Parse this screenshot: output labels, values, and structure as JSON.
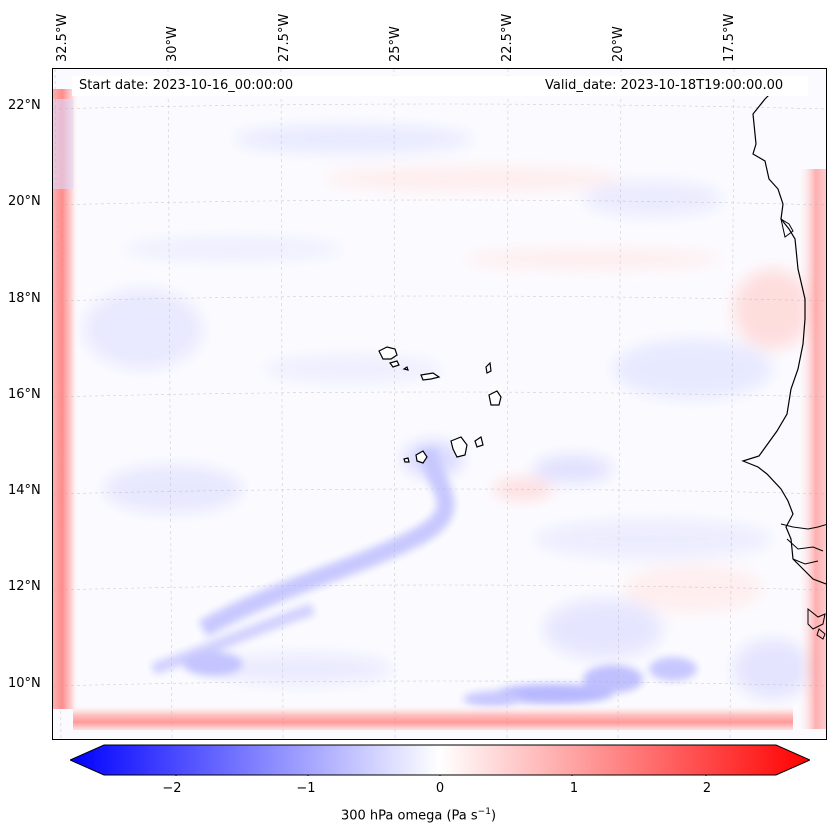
{
  "map": {
    "start_label": "Start date: 2023-10-16_00:00:00",
    "valid_label": "Valid_date: 2023-10-18T19:00:00.00",
    "lon_labels": [
      "32.5°W",
      "30°W",
      "27.5°W",
      "25°W",
      "22.5°W",
      "20°W",
      "17.5°W"
    ],
    "lat_labels": [
      "22°N",
      "20°N",
      "18°N",
      "16°N",
      "14°N",
      "12°N",
      "10°N"
    ]
  },
  "colorbar": {
    "tick_labels": [
      "−2",
      "−1",
      "0",
      "1",
      "2"
    ],
    "label_prefix": "300 hPa omega (Pa s",
    "label_exp": "−1",
    "label_suffix": ")",
    "low_color": "#0000ff",
    "mid_color": "#ffffff",
    "high_color": "#ff0000"
  }
}
